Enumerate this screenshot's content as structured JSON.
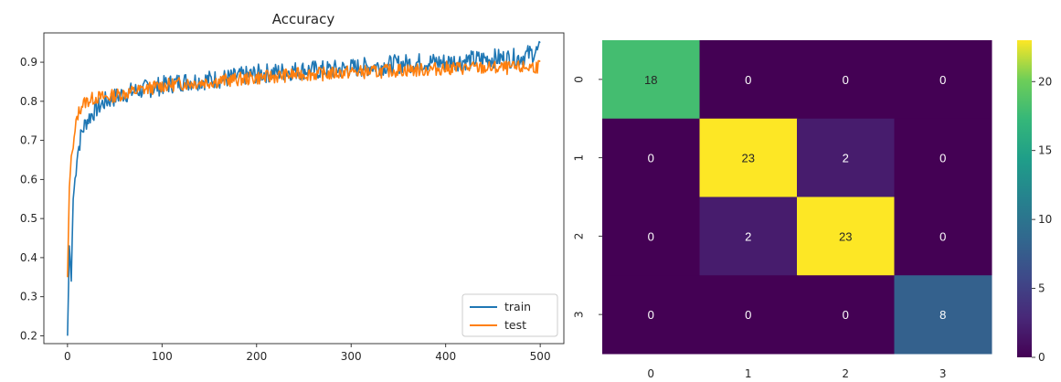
{
  "chart_data": [
    {
      "type": "line",
      "title": "Accuracy",
      "xlabel": "",
      "ylabel": "",
      "xlim": [
        -25,
        525
      ],
      "ylim": [
        0.18,
        0.975
      ],
      "xticks": [
        0,
        100,
        200,
        300,
        400,
        500
      ],
      "xtick_labels": [
        "0",
        "100",
        "200",
        "300",
        "400",
        "500"
      ],
      "yticks": [
        0.2,
        0.3,
        0.4,
        0.5,
        0.6,
        0.7,
        0.8,
        0.9
      ],
      "ytick_labels": [
        "0.2",
        "0.3",
        "0.4",
        "0.5",
        "0.6",
        "0.7",
        "0.8",
        "0.9"
      ],
      "legend_position": "lower-right",
      "grid": false,
      "series": [
        {
          "name": "train",
          "color": "#1f77b4",
          "x": [
            0,
            2,
            4,
            6,
            8,
            10,
            15,
            20,
            30,
            40,
            50,
            60,
            80,
            100,
            120,
            150,
            175,
            200,
            225,
            250,
            275,
            300,
            325,
            350,
            375,
            400,
            425,
            450,
            475,
            500
          ],
          "y": [
            0.2,
            0.43,
            0.34,
            0.55,
            0.6,
            0.66,
            0.72,
            0.75,
            0.78,
            0.8,
            0.81,
            0.82,
            0.83,
            0.84,
            0.85,
            0.855,
            0.86,
            0.87,
            0.875,
            0.88,
            0.88,
            0.885,
            0.89,
            0.895,
            0.9,
            0.9,
            0.905,
            0.91,
            0.91,
            0.93
          ]
        },
        {
          "name": "test",
          "color": "#ff7f0e",
          "x": [
            0,
            2,
            4,
            6,
            8,
            10,
            15,
            20,
            30,
            40,
            50,
            60,
            80,
            100,
            120,
            150,
            175,
            200,
            225,
            250,
            275,
            300,
            325,
            350,
            375,
            400,
            425,
            450,
            475,
            500
          ],
          "y": [
            0.35,
            0.58,
            0.66,
            0.68,
            0.72,
            0.76,
            0.79,
            0.8,
            0.81,
            0.81,
            0.815,
            0.82,
            0.83,
            0.84,
            0.845,
            0.85,
            0.855,
            0.86,
            0.865,
            0.87,
            0.87,
            0.875,
            0.875,
            0.88,
            0.88,
            0.885,
            0.885,
            0.885,
            0.885,
            0.89
          ]
        }
      ]
    },
    {
      "type": "heatmap",
      "title": "",
      "row_labels": [
        "0",
        "1",
        "2",
        "3"
      ],
      "col_labels": [
        "0",
        "1",
        "2",
        "3"
      ],
      "values": [
        [
          18,
          0,
          0,
          0
        ],
        [
          0,
          23,
          2,
          0
        ],
        [
          0,
          2,
          23,
          0
        ],
        [
          0,
          0,
          0,
          8
        ]
      ],
      "annotations": [
        [
          "18",
          "0",
          "0",
          "0"
        ],
        [
          "0",
          "23",
          "2",
          "0"
        ],
        [
          "0",
          "2",
          "23",
          "0"
        ],
        [
          "0",
          "0",
          "0",
          "8"
        ]
      ],
      "colormap": "viridis",
      "vmin": 0,
      "vmax": 23,
      "colorbar_ticks": [
        0,
        5,
        10,
        15,
        20
      ],
      "colorbar_labels": [
        "0",
        "5",
        "10",
        "15",
        "20"
      ]
    }
  ]
}
